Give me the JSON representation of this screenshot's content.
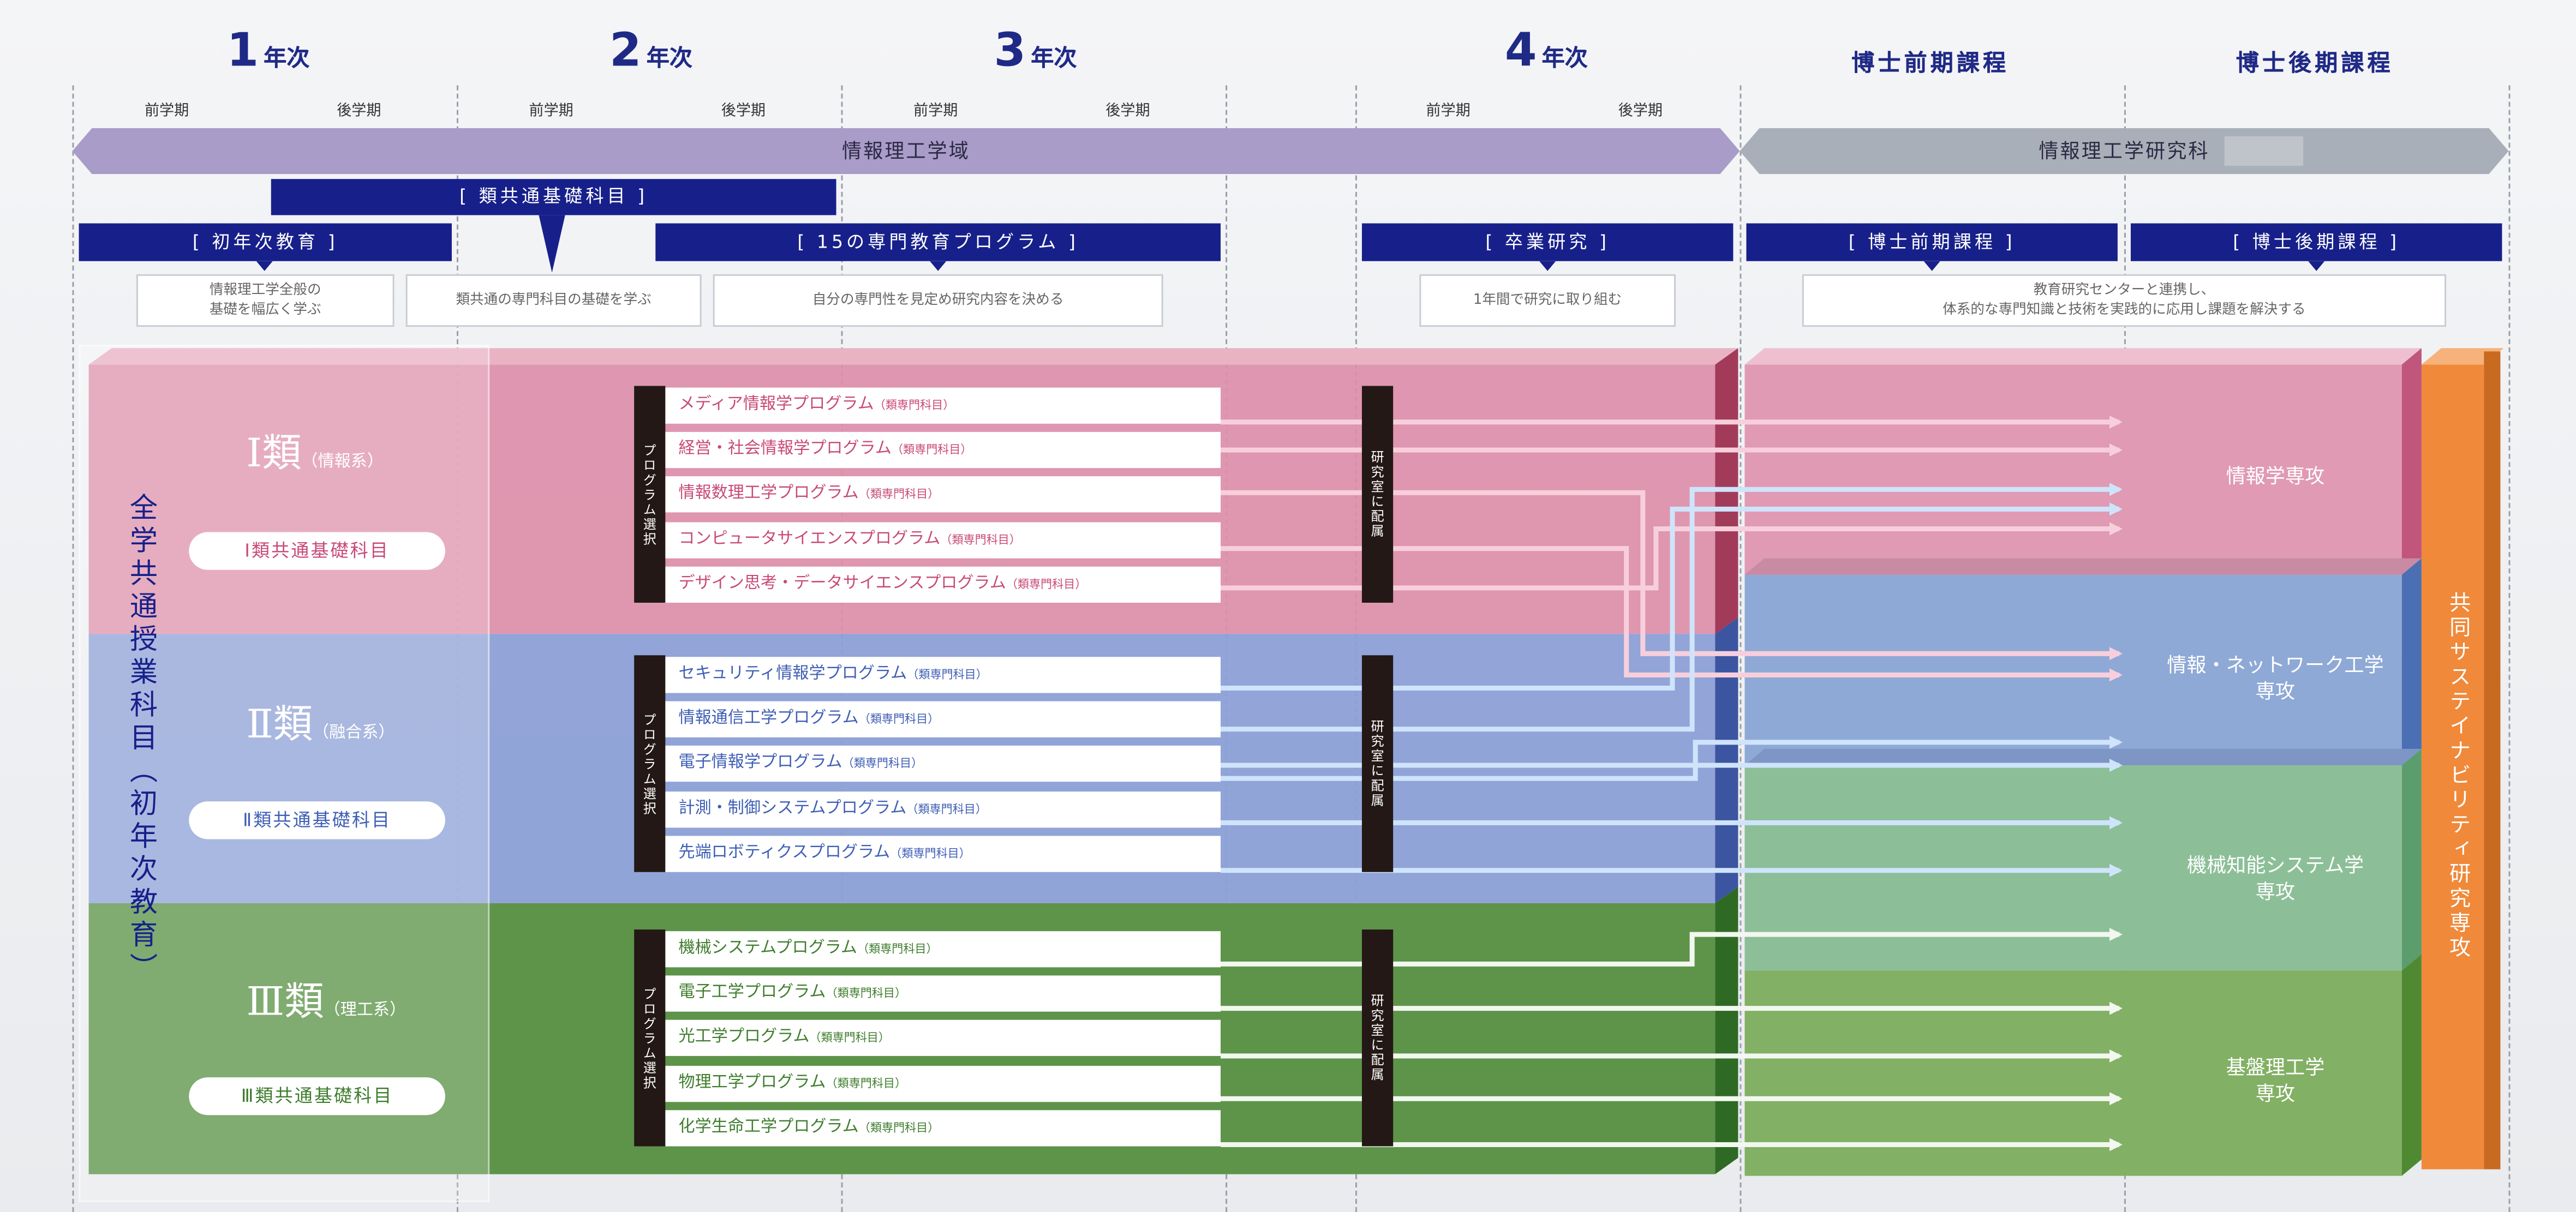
{
  "columns": {
    "year1": {
      "num": "1",
      "label": "年次"
    },
    "year2": {
      "num": "2",
      "label": "年次"
    },
    "year3": {
      "num": "3",
      "label": "年次"
    },
    "year4": {
      "num": "4",
      "label": "年次"
    },
    "doctor_pre": "博士前期課程",
    "doctor_post": "博士後期課程"
  },
  "semesters": {
    "first": "前学期",
    "second": "後学期"
  },
  "arrows": {
    "undergrad": "情報理工学域",
    "grad": "情報理工学研究科"
  },
  "headers": {
    "first_year": "[ 初年次教育 ]",
    "common_basic": "[ 類共通基礎科目 ]",
    "programs15": "[ 15の専門教育プログラム ]",
    "graduation": "[ 卒業研究 ]",
    "doctor_pre": "[ 博士前期課程 ]",
    "doctor_post": "[ 博士後期課程 ]"
  },
  "descriptions": {
    "first_year": [
      "情報理工学全般の",
      "基礎を幅広く学ぶ"
    ],
    "common_basic": "類共通の専門科目の基礎を学ぶ",
    "programs15": "自分の専門性を見定め研究内容を決める",
    "graduation": "1年間で研究に取り組む",
    "graduate": [
      "教育研究センターと連携し、",
      "体系的な専門知識と技術を実践的に応用し課題を解決する"
    ]
  },
  "all_common": "全学共通授業科目（初年次教育）",
  "classes": [
    {
      "name": "Ⅰ類",
      "sub": "（情報系）",
      "pill": "Ⅰ類共通基礎科目",
      "color": "#d0668a",
      "programs": [
        {
          "name": "メディア情報学プログラム",
          "tag": "（類専門科目）"
        },
        {
          "name": "経営・社会情報学プログラム",
          "tag": "（類専門科目）"
        },
        {
          "name": "情報数理工学プログラム",
          "tag": "（類専門科目）"
        },
        {
          "name": "コンピュータサイエンスプログラム",
          "tag": "（類専門科目）"
        },
        {
          "name": "デザイン思考・データサイエンスプログラム",
          "tag": "（類専門科目）"
        }
      ]
    },
    {
      "name": "Ⅱ類",
      "sub": "（融合系）",
      "pill": "Ⅱ類共通基礎科目",
      "color": "#5b77c0",
      "programs": [
        {
          "name": "セキュリティ情報学プログラム",
          "tag": "（類専門科目）"
        },
        {
          "name": "情報通信工学プログラム",
          "tag": "（類専門科目）"
        },
        {
          "name": "電子情報学プログラム",
          "tag": "（類専門科目）"
        },
        {
          "name": "計測・制御システムプログラム",
          "tag": "（類専門科目）"
        },
        {
          "name": "先端ロボティクスプログラム",
          "tag": "（類専門科目）"
        }
      ]
    },
    {
      "name": "Ⅲ類",
      "sub": "（理工系）",
      "pill": "Ⅲ類共通基礎科目",
      "color": "#4e8a3c",
      "programs": [
        {
          "name": "機械システムプログラム",
          "tag": "（類専門科目）"
        },
        {
          "name": "電子工学プログラム",
          "tag": "（類専門科目）"
        },
        {
          "name": "光工学プログラム",
          "tag": "（類専門科目）"
        },
        {
          "name": "物理工学プログラム",
          "tag": "（類専門科目）"
        },
        {
          "name": "化学生命工学プログラム",
          "tag": "（類専門科目）"
        }
      ]
    }
  ],
  "program_select": "プログラム選択",
  "lab_assign": "研究室に配属",
  "majors": [
    {
      "lines": [
        "情報学専攻"
      ]
    },
    {
      "lines": [
        "情報・ネットワーク工学",
        "専攻"
      ]
    },
    {
      "lines": [
        "機械知能システム学",
        "専攻"
      ]
    },
    {
      "lines": [
        "基盤理工学",
        "専攻"
      ]
    }
  ],
  "joint": "共同サステイナビリティ研究専攻",
  "colors": {
    "navy": "#17208a",
    "pink": "#d0668a",
    "blue": "#5b77c0",
    "green": "#4e8a3c",
    "orange": "#f08a3a"
  }
}
